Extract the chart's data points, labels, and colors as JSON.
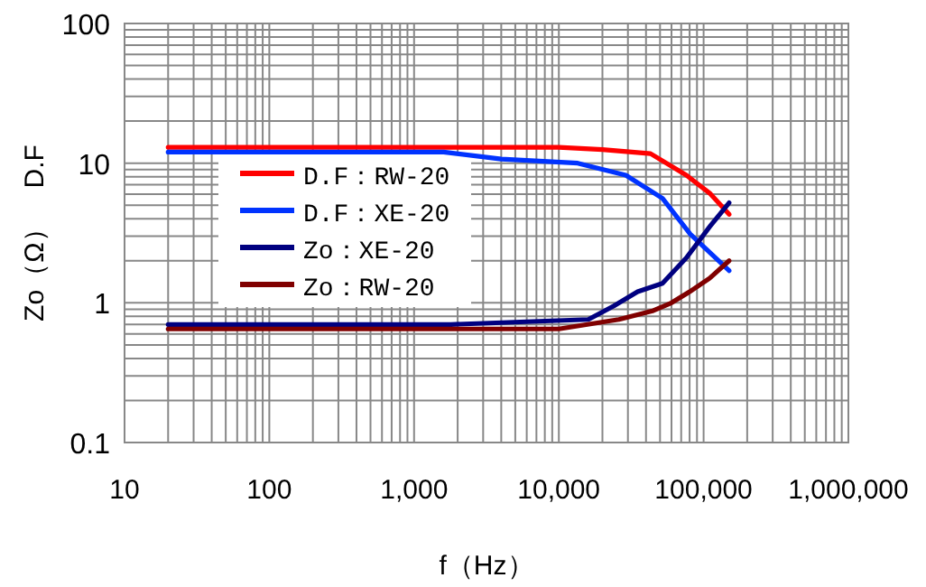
{
  "chart_data": {
    "type": "line",
    "xlabel": "f（Hz）",
    "ylabel": "Zo（Ω）　D.F",
    "log": "xy",
    "grid": true,
    "legend": "left",
    "xlim": [
      10,
      1000000
    ],
    "ylim": [
      0.1,
      100
    ],
    "xticks": [
      10,
      100,
      {
        "value": 1000,
        "label": "1,000"
      },
      {
        "value": 10000,
        "label": "10,000"
      },
      {
        "value": 100000,
        "label": "100,000"
      },
      {
        "value": 1000000,
        "label": "1,000,000"
      }
    ],
    "yticks": [
      0.1,
      1,
      10,
      100
    ],
    "series": [
      {
        "name": "D.F：RW-20",
        "color": "#ff0000",
        "x": [
          20,
          1000,
          10000,
          20000,
          43000,
          76000,
          110000,
          150000
        ],
        "values": [
          13,
          13,
          13,
          12.5,
          11.7,
          8.2,
          6.1,
          4.3
        ]
      },
      {
        "name": "D.F：XE-20",
        "color": "#0033ff",
        "x": [
          20,
          1600,
          4000,
          13500,
          29000,
          52000,
          81000,
          110000,
          150000
        ],
        "values": [
          12,
          12,
          10.7,
          10,
          8.2,
          5.6,
          3.1,
          2.3,
          1.7
        ]
      },
      {
        "name": "Zo：XE-20",
        "color": "#000080",
        "x": [
          20,
          1800,
          16000,
          24000,
          35000,
          52000,
          76000,
          110000,
          150000
        ],
        "values": [
          0.7,
          0.7,
          0.76,
          0.95,
          1.2,
          1.38,
          2.1,
          3.5,
          5.2
        ]
      },
      {
        "name": "Zo：RW-20",
        "color": "#800000",
        "x": [
          20,
          10000,
          26000,
          45000,
          60000,
          80000,
          110000,
          150000
        ],
        "values": [
          0.65,
          0.65,
          0.76,
          0.88,
          1.0,
          1.2,
          1.5,
          2.0
        ]
      }
    ]
  }
}
